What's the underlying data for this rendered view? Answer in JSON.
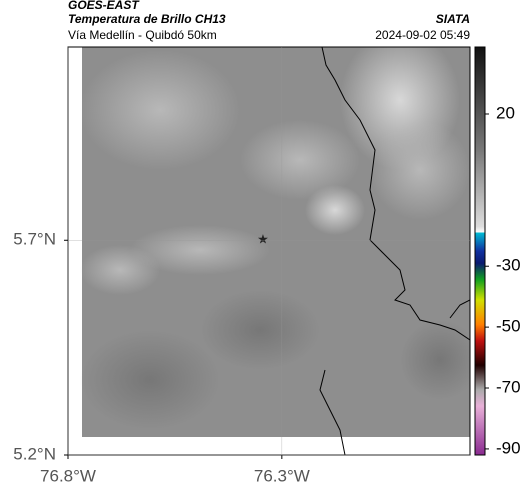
{
  "header": {
    "source": "GOES-EAST",
    "product": "Temperatura de Brillo CH13",
    "route": "Vía Medellín - Quibdó 50km",
    "agency": "SIATA",
    "timestamp": "2024-09-02 05:49"
  },
  "map": {
    "xlim": [
      -76.8,
      -75.86
    ],
    "ylim": [
      5.2,
      6.15
    ],
    "xticks": [
      {
        "value": -76.8,
        "label": "76.8°W"
      },
      {
        "value": -76.3,
        "label": "76.3°W"
      }
    ],
    "yticks": [
      {
        "value": 5.2,
        "label": "5.2°N"
      },
      {
        "value": 5.7,
        "label": "5.7°N"
      }
    ]
  },
  "colorbar": {
    "lim": [
      -92,
      42
    ],
    "ticks": [
      20,
      -30,
      -50,
      -70,
      -90
    ]
  }
}
